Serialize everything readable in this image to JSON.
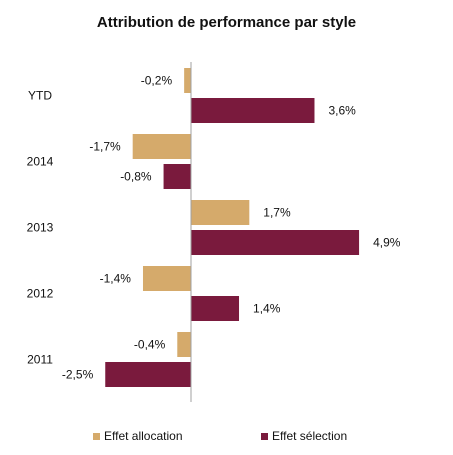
{
  "chart_data": {
    "type": "bar",
    "orientation": "horizontal",
    "title": "Attribution de performance par style",
    "categories": [
      "YTD",
      "2014",
      "2013",
      "2012",
      "2011"
    ],
    "series": [
      {
        "name": "Effet allocation",
        "color": "#D5AA6B",
        "values": [
          -0.2,
          -1.7,
          1.7,
          -1.4,
          -0.4
        ],
        "labels": [
          "-0,2%",
          "-1,7%",
          "1,7%",
          "-1,4%",
          "-0,4%"
        ]
      },
      {
        "name": "Effet sélection",
        "color": "#7A1A3D",
        "values": [
          3.6,
          -0.8,
          4.9,
          1.4,
          -2.5
        ],
        "labels": [
          "3,6%",
          "-0,8%",
          "4,9%",
          "1,4%",
          "-2,5%"
        ]
      }
    ],
    "xlim": [
      -3,
      6
    ],
    "xlabel": "",
    "ylabel": "",
    "grid": false,
    "legend_position": "bottom"
  }
}
